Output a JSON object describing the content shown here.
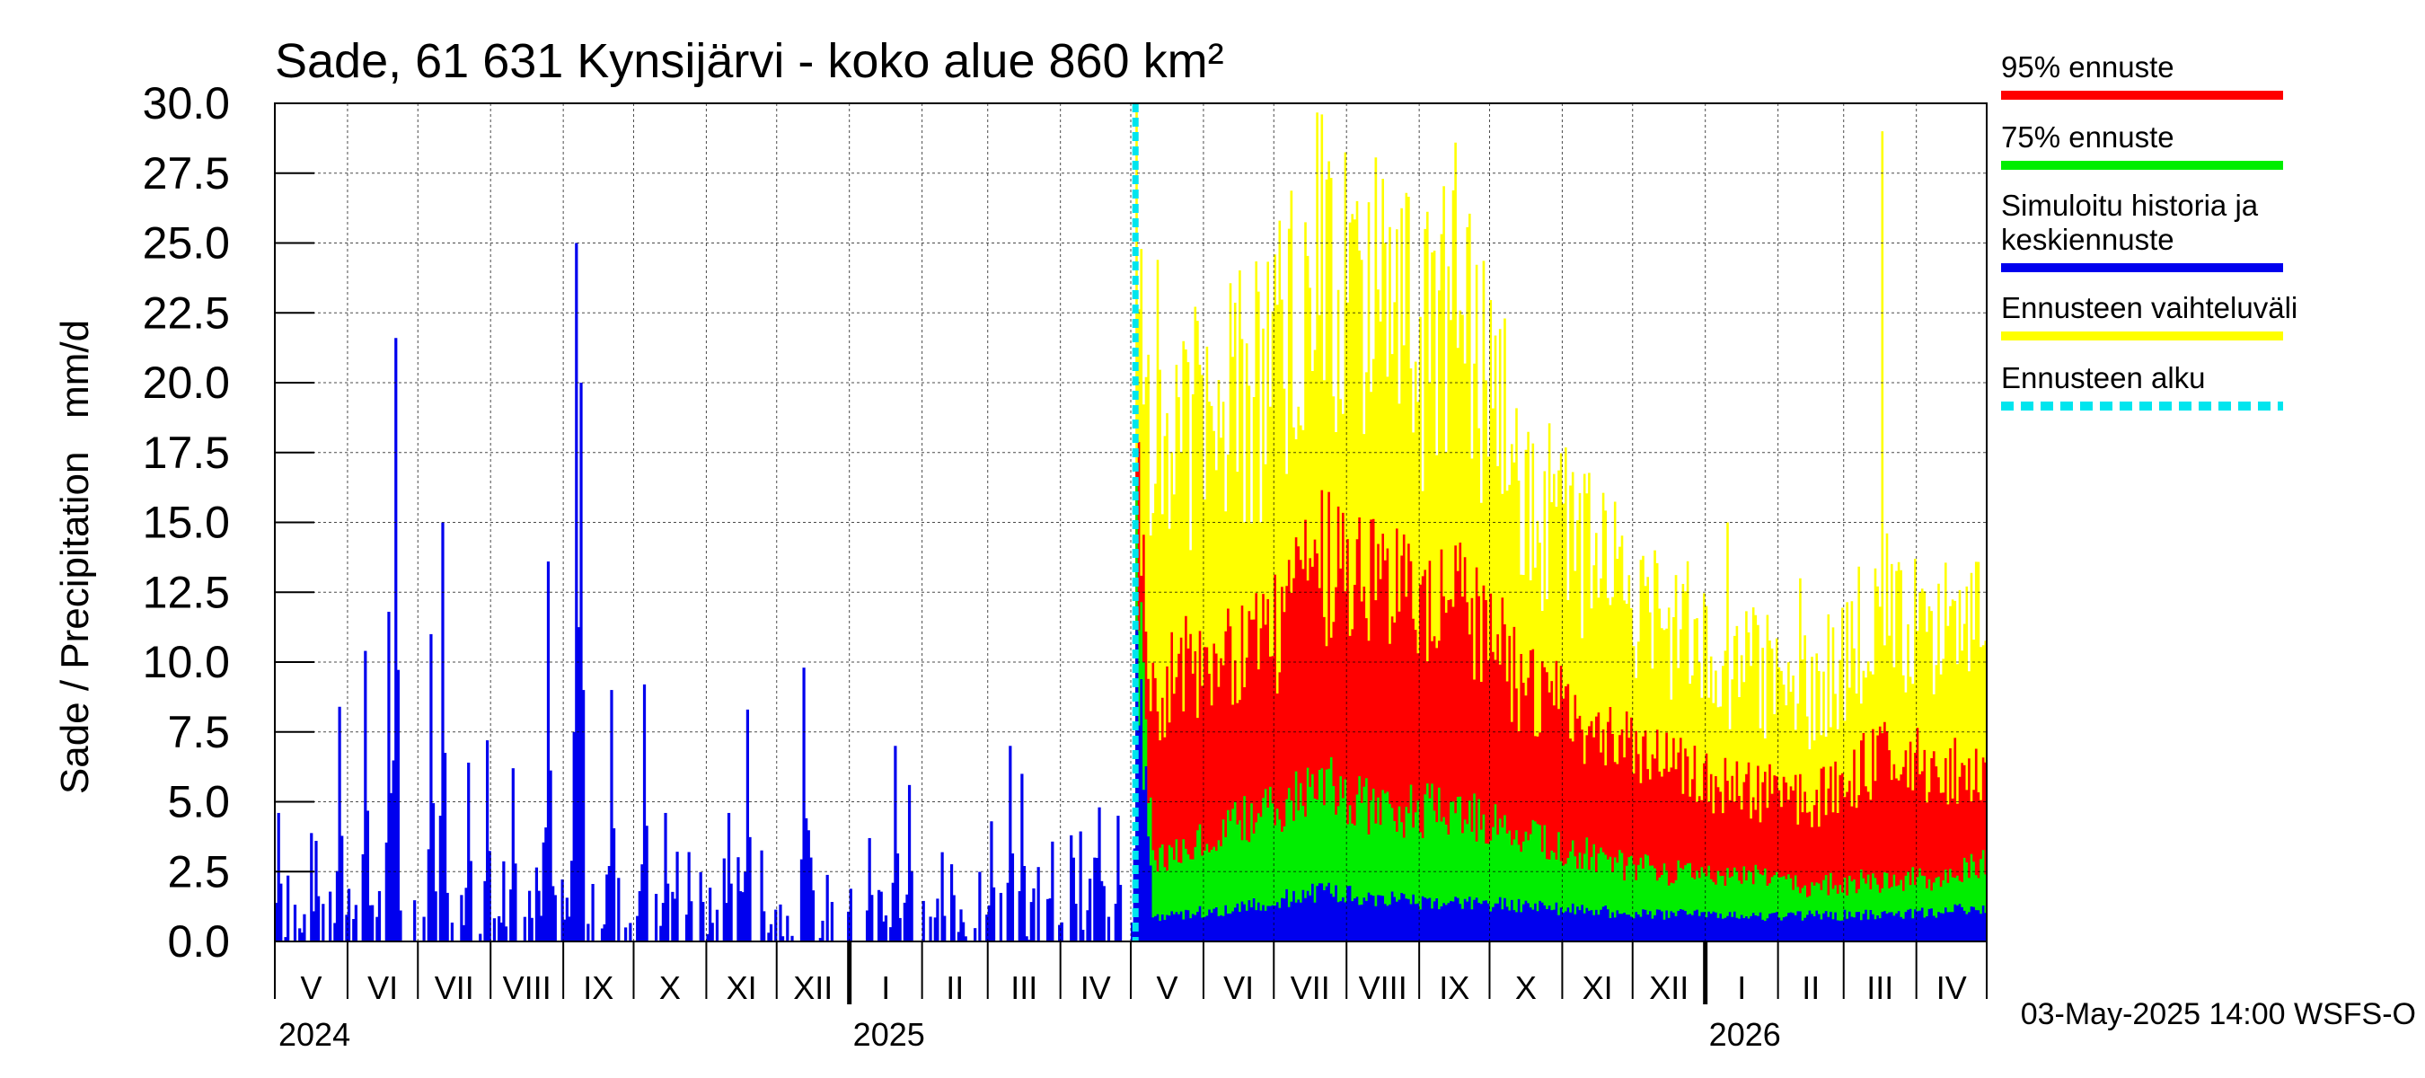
{
  "chart_data": {
    "type": "bar",
    "title": "Sade, 61 631 Kynsijärvi - koko alue 860 km²",
    "ylabel": "Sade / Precipitation   mm/d",
    "ylim": [
      0,
      30
    ],
    "yticks": [
      "0.0",
      "2.5",
      "5.0",
      "7.5",
      "10.0",
      "12.5",
      "15.0",
      "17.5",
      "20.0",
      "22.5",
      "25.0",
      "27.5",
      "30.0"
    ],
    "grid": true,
    "legend_position": "right",
    "x_start": "2024-05-01",
    "x_end": "2026-05-01",
    "forecast_start": "2025-05-03",
    "month_labels": [
      "V",
      "VI",
      "VII",
      "VIII",
      "IX",
      "X",
      "XI",
      "XII",
      "I",
      "II",
      "III",
      "IV",
      "V",
      "VI",
      "VII",
      "VIII",
      "IX",
      "X",
      "XI",
      "XII",
      "I",
      "II",
      "III",
      "IV"
    ],
    "year_labels": [
      {
        "label": "2024",
        "month_index": 0
      },
      {
        "label": "2025",
        "month_index": 8
      },
      {
        "label": "2026",
        "month_index": 20
      }
    ],
    "legend": [
      {
        "label": "95% ennuste",
        "color": "#ff0000",
        "style": "solid"
      },
      {
        "label": "75% ennuste",
        "color": "#00ee00",
        "style": "solid"
      },
      {
        "label": "Simuloitu historia ja keskiennuste",
        "color": "#0000ee",
        "style": "solid"
      },
      {
        "label": "Ennusteen vaihteluväli",
        "color": "#ffff00",
        "style": "solid"
      },
      {
        "label": "Ennusteen alku",
        "color": "#00e5ee",
        "style": "dashed"
      }
    ],
    "history_peaks": [
      {
        "date": "2024-05-02",
        "value": 4.6
      },
      {
        "date": "2024-05-18",
        "value": 3.6
      },
      {
        "date": "2024-05-28",
        "value": 8.4
      },
      {
        "date": "2024-06-08",
        "value": 10.4
      },
      {
        "date": "2024-06-18",
        "value": 11.8
      },
      {
        "date": "2024-06-21",
        "value": 21.6
      },
      {
        "date": "2024-07-06",
        "value": 11.0
      },
      {
        "date": "2024-07-11",
        "value": 15.0
      },
      {
        "date": "2024-07-22",
        "value": 6.4
      },
      {
        "date": "2024-07-30",
        "value": 7.2
      },
      {
        "date": "2024-08-10",
        "value": 6.2
      },
      {
        "date": "2024-08-25",
        "value": 13.6
      },
      {
        "date": "2024-09-06",
        "value": 25.0
      },
      {
        "date": "2024-09-08",
        "value": 20.0
      },
      {
        "date": "2024-09-21",
        "value": 9.0
      },
      {
        "date": "2024-10-05",
        "value": 9.2
      },
      {
        "date": "2024-10-14",
        "value": 4.6
      },
      {
        "date": "2024-10-24",
        "value": 3.2
      },
      {
        "date": "2024-11-10",
        "value": 4.6
      },
      {
        "date": "2024-11-18",
        "value": 8.3
      },
      {
        "date": "2024-12-12",
        "value": 9.8
      },
      {
        "date": "2025-01-09",
        "value": 3.7
      },
      {
        "date": "2025-01-20",
        "value": 7.0
      },
      {
        "date": "2025-01-26",
        "value": 5.6
      },
      {
        "date": "2025-03-02",
        "value": 4.3
      },
      {
        "date": "2025-03-10",
        "value": 7.0
      },
      {
        "date": "2025-03-15",
        "value": 6.0
      },
      {
        "date": "2025-04-06",
        "value": 3.0
      },
      {
        "date": "2025-04-17",
        "value": 4.8
      },
      {
        "date": "2025-04-25",
        "value": 4.5
      },
      {
        "date": "2025-05-03",
        "value": 11.1
      }
    ],
    "forecast_range_max_peaks": [
      {
        "date": "2025-05-08",
        "value": 21.0
      },
      {
        "date": "2025-05-12",
        "value": 24.4
      },
      {
        "date": "2025-06-02",
        "value": 20.8
      },
      {
        "date": "2025-07-03",
        "value": 25.8
      },
      {
        "date": "2025-07-21",
        "value": 29.6
      },
      {
        "date": "2025-08-05",
        "value": 26.5
      },
      {
        "date": "2025-08-16",
        "value": 27.3
      },
      {
        "date": "2025-09-15",
        "value": 26.3
      },
      {
        "date": "2025-10-10",
        "value": 17.8
      },
      {
        "date": "2025-11-05",
        "value": 16.8
      },
      {
        "date": "2025-12-10",
        "value": 14.0
      },
      {
        "date": "2026-01-10",
        "value": 15.0
      },
      {
        "date": "2026-02-10",
        "value": 13.0
      },
      {
        "date": "2026-03-17",
        "value": 29.0
      },
      {
        "date": "2026-04-15",
        "value": 12.0
      },
      {
        "date": "2026-04-29",
        "value": 10.6
      }
    ],
    "forecast_95_envelope": [
      {
        "date": "2025-05-03",
        "value": 16.6
      },
      {
        "date": "2025-05-10",
        "value": 9.0
      },
      {
        "date": "2025-06-01",
        "value": 10.4
      },
      {
        "date": "2025-07-01",
        "value": 11.0
      },
      {
        "date": "2025-07-20",
        "value": 13.6
      },
      {
        "date": "2025-08-15",
        "value": 13.0
      },
      {
        "date": "2025-09-01",
        "value": 11.6
      },
      {
        "date": "2025-09-15",
        "value": 13.3
      },
      {
        "date": "2025-10-15",
        "value": 9.0
      },
      {
        "date": "2025-11-15",
        "value": 7.6
      },
      {
        "date": "2025-12-15",
        "value": 6.4
      },
      {
        "date": "2026-01-15",
        "value": 5.5
      },
      {
        "date": "2026-02-15",
        "value": 5.0
      },
      {
        "date": "2026-03-15",
        "value": 6.6
      },
      {
        "date": "2026-04-15",
        "value": 6.2
      },
      {
        "date": "2026-05-01",
        "value": 6.0
      }
    ],
    "forecast_75_envelope": [
      {
        "date": "2025-05-03",
        "value": 14.2
      },
      {
        "date": "2025-05-10",
        "value": 2.8
      },
      {
        "date": "2025-06-01",
        "value": 3.8
      },
      {
        "date": "2025-07-01",
        "value": 4.8
      },
      {
        "date": "2025-07-20",
        "value": 5.8
      },
      {
        "date": "2025-08-15",
        "value": 4.6
      },
      {
        "date": "2025-09-15",
        "value": 4.8
      },
      {
        "date": "2025-10-15",
        "value": 3.8
      },
      {
        "date": "2025-11-15",
        "value": 3.0
      },
      {
        "date": "2025-12-15",
        "value": 2.5
      },
      {
        "date": "2026-01-15",
        "value": 2.4
      },
      {
        "date": "2026-02-15",
        "value": 2.0
      },
      {
        "date": "2026-03-15",
        "value": 2.2
      },
      {
        "date": "2026-04-15",
        "value": 2.3
      },
      {
        "date": "2026-05-01",
        "value": 3.1
      }
    ],
    "forecast_median_envelope": [
      {
        "date": "2025-05-03",
        "value": 11.1
      },
      {
        "date": "2025-05-10",
        "value": 0.9
      },
      {
        "date": "2025-06-15",
        "value": 1.2
      },
      {
        "date": "2025-07-20",
        "value": 1.8
      },
      {
        "date": "2025-09-01",
        "value": 1.4
      },
      {
        "date": "2025-10-15",
        "value": 1.3
      },
      {
        "date": "2025-12-01",
        "value": 1.0
      },
      {
        "date": "2026-02-01",
        "value": 0.9
      },
      {
        "date": "2026-04-01",
        "value": 1.0
      },
      {
        "date": "2026-05-01",
        "value": 1.2
      }
    ]
  },
  "footer": {
    "timestamp": "03-May-2025 14:00 WSFS-O"
  }
}
